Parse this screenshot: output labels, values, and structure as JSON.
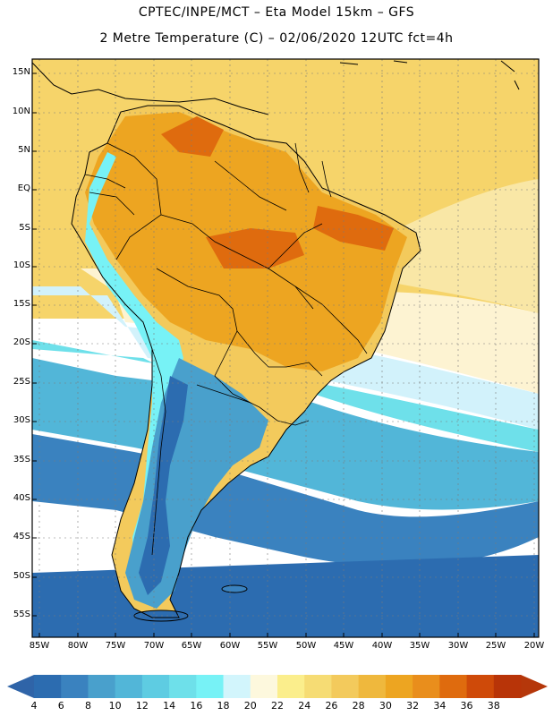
{
  "header": {
    "line1": "CPTEC/INPE/MCT –  Eta Model 15km – GFS",
    "line2": "2 Metre Temperature (C) – 02/06/2020 12UTC fct=4h"
  },
  "latitude_labels": [
    "15N",
    "10N",
    "5N",
    "EQ",
    "5S",
    "10S",
    "15S",
    "20S",
    "25S",
    "30S",
    "35S",
    "40S",
    "45S",
    "50S",
    "55S"
  ],
  "longitude_labels": [
    "85W",
    "80W",
    "75W",
    "70W",
    "65W",
    "60W",
    "55W",
    "50W",
    "45W",
    "40W",
    "35W",
    "30W",
    "25W",
    "20W"
  ],
  "colorbar": {
    "labels": [
      "4",
      "6",
      "8",
      "10",
      "12",
      "14",
      "16",
      "18",
      "20",
      "22",
      "24",
      "26",
      "28",
      "30",
      "32",
      "34",
      "36",
      "38"
    ],
    "colors": [
      "#2c6cb0",
      "#3a82bf",
      "#49a0cc",
      "#52b6d8",
      "#5ecce2",
      "#6ee0ea",
      "#77f2f6",
      "#d2f5fc",
      "#fdf8dd",
      "#fbee8c",
      "#f6dc74",
      "#f3ca5c",
      "#efb83d",
      "#eda521",
      "#e98e1c",
      "#df6b0e",
      "#cf4a09",
      "#b83408"
    ],
    "low_arrow_color": "#2f64a8",
    "high_arrow_color": "#b5370a"
  },
  "map": {
    "ocean_colors": {
      "north_warm": "#f6d46a",
      "north_pale": "#f9e7a6",
      "cream": "#fdf3d2",
      "pale_cyan": "#d2f2fb",
      "cyan": "#6ee0ea",
      "mid_blue": "#52b6d8",
      "blue": "#3a82bf",
      "deep_blue": "#2c6cb0"
    },
    "land_colors": {
      "hot": "#df6b0e",
      "warm": "#eda521",
      "mild": "#f3ca5c",
      "cool": "#77f2f6",
      "cold": "#49a0cc",
      "coldest": "#2c6cb0"
    },
    "border_color": "#000000",
    "grid_color": "#7a7a7a"
  }
}
